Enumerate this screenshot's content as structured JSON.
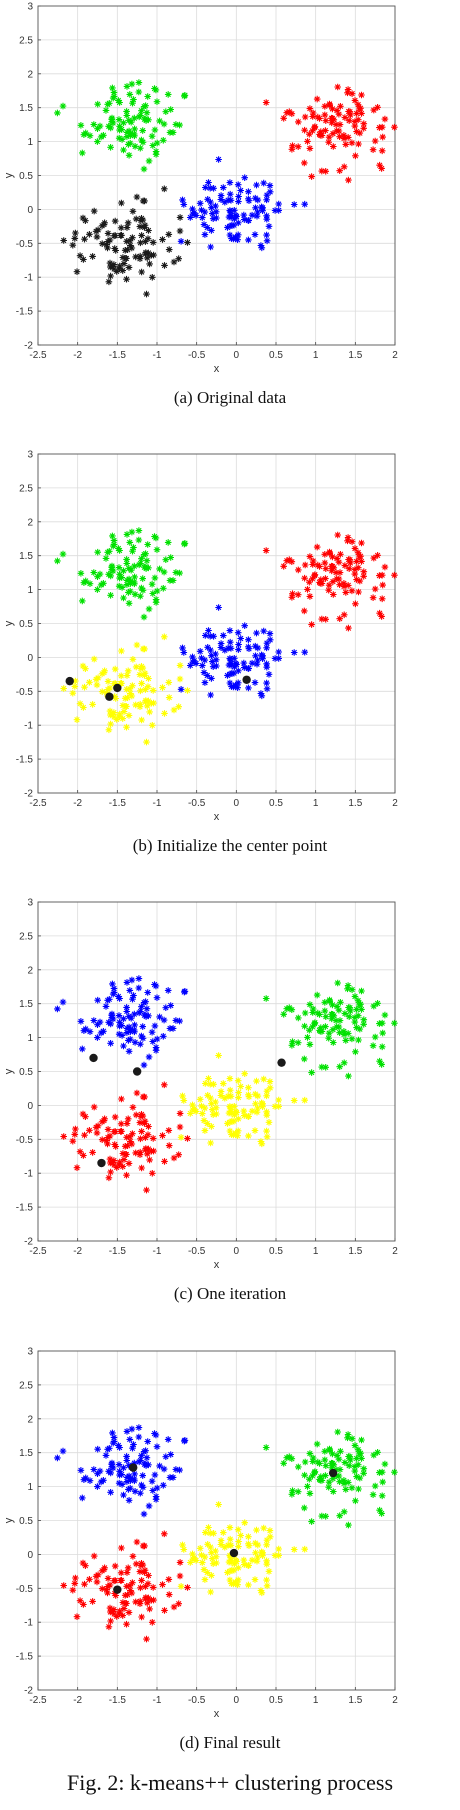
{
  "figure_caption": "Fig. 2: k-means++ clustering process",
  "colors": {
    "black": "#1a1a1a",
    "green": "#00e000",
    "red": "#ff0000",
    "blue": "#0000ff",
    "yellow": "#ffff00",
    "center": "#1a1a1a"
  },
  "chart_data": [
    {
      "type": "scatter",
      "caption": "(a)  Original data",
      "xlabel": "x",
      "ylabel": "y",
      "xlim": [
        -2.5,
        2
      ],
      "ylim": [
        -2,
        3
      ],
      "xticks": [
        "-2.5",
        "-2",
        "-1.5",
        "-1",
        "-0.5",
        "0",
        "0.5",
        "1",
        "1.5",
        "2"
      ],
      "yticks": [
        "-2",
        "-1.5",
        "-1",
        "-0.5",
        "0",
        "0.5",
        "1",
        "1.5",
        "2",
        "2.5",
        "3"
      ],
      "grid": true,
      "clusters": [
        {
          "color": "black",
          "center": [
            -1.45,
            -0.5
          ]
        },
        {
          "color": "green",
          "center": [
            -1.3,
            1.3
          ]
        },
        {
          "color": "red",
          "center": [
            1.25,
            1.2
          ]
        },
        {
          "color": "blue",
          "center": [
            0.0,
            0.0
          ]
        }
      ],
      "centroids": []
    },
    {
      "type": "scatter",
      "caption": "(b)  Initialize the center point",
      "xlabel": "x",
      "ylabel": "y",
      "xlim": [
        -2.5,
        2
      ],
      "ylim": [
        -2,
        3
      ],
      "xticks": [
        "-2.5",
        "-2",
        "-1.5",
        "-1",
        "-0.5",
        "0",
        "0.5",
        "1",
        "1.5",
        "2"
      ],
      "yticks": [
        "-2",
        "-1.5",
        "-1",
        "-0.5",
        "0",
        "0.5",
        "1",
        "1.5",
        "2",
        "2.5",
        "3"
      ],
      "grid": true,
      "clusters": [
        {
          "color": "yellow",
          "center": [
            -1.45,
            -0.5
          ]
        },
        {
          "color": "green",
          "center": [
            -1.3,
            1.3
          ]
        },
        {
          "color": "red",
          "center": [
            1.25,
            1.2
          ]
        },
        {
          "color": "blue",
          "center": [
            0.0,
            0.0
          ]
        }
      ],
      "centroids": [
        [
          -2.1,
          -0.35
        ],
        [
          -1.6,
          -0.58
        ],
        [
          -1.5,
          -0.45
        ],
        [
          0.13,
          -0.33
        ]
      ]
    },
    {
      "type": "scatter",
      "caption": "(c)  One iteration",
      "xlabel": "x",
      "ylabel": "y",
      "xlim": [
        -2.5,
        2
      ],
      "ylim": [
        -2,
        3
      ],
      "xticks": [
        "-2.5",
        "-2",
        "-1.5",
        "-1",
        "-0.5",
        "0",
        "0.5",
        "1",
        "1.5",
        "2"
      ],
      "yticks": [
        "-2",
        "-1.5",
        "-1",
        "-0.5",
        "0",
        "0.5",
        "1",
        "1.5",
        "2",
        "2.5",
        "3"
      ],
      "grid": true,
      "clusters": [
        {
          "color": "red",
          "center": [
            -1.45,
            -0.5
          ]
        },
        {
          "color": "blue",
          "center": [
            -1.3,
            1.3
          ]
        },
        {
          "color": "green",
          "center": [
            1.25,
            1.2
          ]
        },
        {
          "color": "yellow",
          "center": [
            0.0,
            0.0
          ]
        }
      ],
      "centroids": [
        [
          -1.8,
          0.7
        ],
        [
          -1.25,
          0.5
        ],
        [
          -1.7,
          -0.85
        ],
        [
          0.57,
          0.63
        ]
      ]
    },
    {
      "type": "scatter",
      "caption": "(d)  Final result",
      "xlabel": "x",
      "ylabel": "y",
      "xlim": [
        -2.5,
        2
      ],
      "ylim": [
        -2,
        3
      ],
      "xticks": [
        "-2.5",
        "-2",
        "-1.5",
        "-1",
        "-0.5",
        "0",
        "0.5",
        "1",
        "1.5",
        "2"
      ],
      "yticks": [
        "-2",
        "-1.5",
        "-1",
        "-0.5",
        "0",
        "0.5",
        "1",
        "1.5",
        "2",
        "2.5",
        "3"
      ],
      "grid": true,
      "clusters": [
        {
          "color": "red",
          "center": [
            -1.45,
            -0.5
          ]
        },
        {
          "color": "blue",
          "center": [
            -1.3,
            1.3
          ]
        },
        {
          "color": "green",
          "center": [
            1.25,
            1.2
          ]
        },
        {
          "color": "yellow",
          "center": [
            0.0,
            0.0
          ]
        }
      ],
      "centroids": [
        [
          -1.3,
          1.28
        ],
        [
          1.22,
          1.2
        ],
        [
          -0.03,
          0.02
        ],
        [
          -1.5,
          -0.52
        ]
      ]
    }
  ]
}
